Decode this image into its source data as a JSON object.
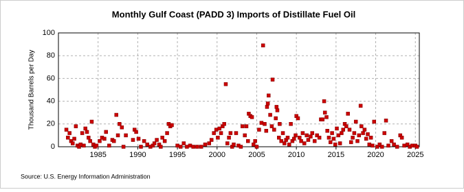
{
  "chart_data": {
    "type": "scatter",
    "title": "Monthly Gulf Coast (PADD 3) Imports of Distillate Fuel Oil",
    "y_label": "Thousand Barrels per Day",
    "source": "Source: U.S. Energy Information Administration",
    "color": "#cc0000",
    "grid": true,
    "xlim": [
      1980,
      2025.5
    ],
    "ylim": [
      0,
      100
    ],
    "xticks": [
      1985,
      1990,
      1995,
      2000,
      2005,
      2010,
      2015,
      2020,
      2025
    ],
    "yticks": [
      0,
      20,
      40,
      60,
      80,
      100
    ],
    "x": [
      1981.0,
      1981.2,
      1981.4,
      1981.6,
      1981.8,
      1982.0,
      1982.2,
      1982.4,
      1982.6,
      1982.8,
      1983.0,
      1983.2,
      1983.4,
      1983.6,
      1983.8,
      1984.0,
      1984.2,
      1984.4,
      1984.6,
      1984.8,
      1985.2,
      1985.5,
      1985.8,
      1986.0,
      1986.4,
      1986.8,
      1987.0,
      1987.3,
      1987.5,
      1987.7,
      1988.0,
      1988.2,
      1988.5,
      1989.4,
      1989.6,
      1989.8,
      1990.1,
      1990.4,
      1990.8,
      1991.2,
      1991.6,
      1991.9,
      1992.1,
      1992.4,
      1992.7,
      1992.9,
      1993.1,
      1993.4,
      1993.7,
      1993.9,
      1994.1,
      1994.3,
      1995.0,
      1995.4,
      1995.8,
      1996.2,
      1996.6,
      1997.0,
      1997.5,
      1998.0,
      1998.5,
      1999.0,
      1999.3,
      1999.6,
      1999.9,
      2000.1,
      2000.3,
      2000.5,
      2000.7,
      2000.9,
      2001.1,
      2001.3,
      2001.5,
      2001.7,
      2001.9,
      2002.1,
      2002.4,
      2002.7,
      2003.0,
      2003.2,
      2003.5,
      2003.7,
      2003.9,
      2004.0,
      2004.2,
      2004.4,
      2004.6,
      2004.8,
      2005.0,
      2005.3,
      2005.6,
      2005.8,
      2006.0,
      2006.2,
      2006.3,
      2006.4,
      2006.5,
      2006.7,
      2006.9,
      2007.0,
      2007.2,
      2007.4,
      2007.5,
      2007.6,
      2007.8,
      2007.9,
      2008.1,
      2008.3,
      2008.5,
      2008.7,
      2008.9,
      2009.1,
      2009.3,
      2009.5,
      2009.7,
      2009.9,
      2010.0,
      2010.2,
      2010.4,
      2010.6,
      2010.8,
      2011.0,
      2011.3,
      2011.5,
      2011.8,
      2012.0,
      2012.3,
      2012.6,
      2012.9,
      2013.1,
      2013.3,
      2013.5,
      2013.6,
      2013.8,
      2013.9,
      2014.1,
      2014.3,
      2014.5,
      2014.7,
      2014.9,
      2015.1,
      2015.3,
      2015.5,
      2015.7,
      2015.9,
      2016.1,
      2016.3,
      2016.5,
      2016.7,
      2016.9,
      2017.1,
      2017.3,
      2017.5,
      2017.7,
      2017.9,
      2018.1,
      2018.2,
      2018.4,
      2018.6,
      2018.8,
      2019.0,
      2019.2,
      2019.4,
      2019.6,
      2019.8,
      2020.2,
      2020.5,
      2020.8,
      2021.1,
      2021.3,
      2021.6,
      2022.0,
      2022.3,
      2022.7,
      2023.1,
      2023.3,
      2023.6,
      2024.0,
      2024.3,
      2024.6,
      2025.0,
      2025.2
    ],
    "values": [
      15,
      8,
      12,
      5,
      3,
      7,
      18,
      1,
      0,
      2,
      12,
      1,
      16,
      13,
      8,
      5,
      22,
      2,
      0,
      1,
      5,
      8,
      7,
      13,
      1,
      6,
      5,
      28,
      10,
      20,
      17,
      0,
      10,
      6,
      15,
      13,
      7,
      0,
      5,
      2,
      0,
      1,
      3,
      6,
      2,
      0,
      8,
      5,
      12,
      20,
      18,
      19,
      1,
      0,
      3,
      0,
      1,
      0,
      0,
      0,
      2,
      3,
      6,
      12,
      15,
      8,
      16,
      12,
      18,
      20,
      55,
      3,
      8,
      12,
      0,
      2,
      12,
      1,
      0,
      18,
      10,
      18,
      5,
      29,
      27,
      26,
      2,
      5,
      0,
      15,
      21,
      89,
      20,
      14,
      35,
      38,
      45,
      28,
      18,
      59,
      15,
      25,
      35,
      32,
      8,
      20,
      5,
      12,
      3,
      6,
      8,
      2,
      20,
      5,
      7,
      10,
      27,
      25,
      8,
      5,
      12,
      3,
      10,
      6,
      9,
      12,
      5,
      10,
      8,
      24,
      24,
      40,
      30,
      26,
      14,
      8,
      4,
      12,
      7,
      2,
      16,
      10,
      3,
      12,
      15,
      20,
      18,
      29,
      15,
      4,
      8,
      12,
      22,
      5,
      10,
      36,
      18,
      12,
      15,
      7,
      11,
      2,
      8,
      1,
      22,
      0,
      2,
      0,
      12,
      23,
      1,
      5,
      2,
      0,
      10,
      8,
      1,
      2,
      0,
      1,
      1,
      0
    ]
  }
}
